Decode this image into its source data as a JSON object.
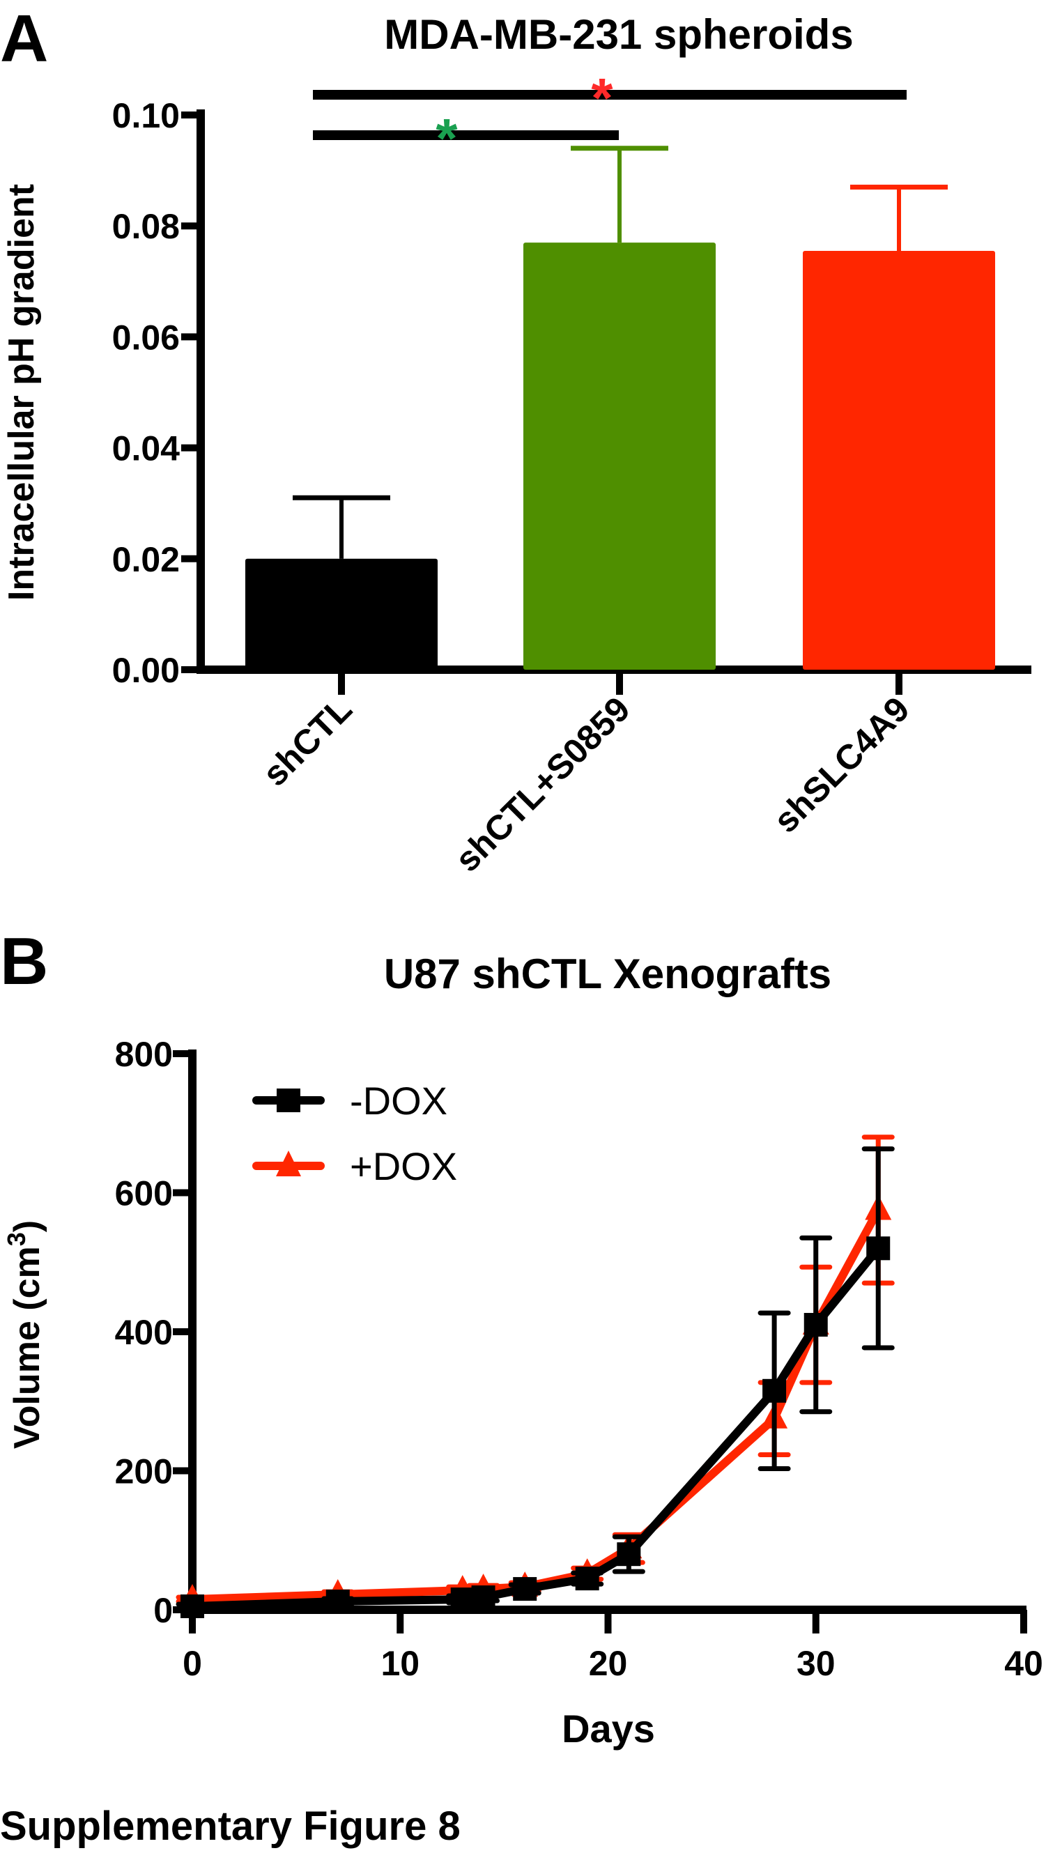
{
  "figure_caption": "Supplementary Figure 8",
  "chart_data": [
    {
      "panel_label": "A",
      "type": "bar",
      "title": "MDA-MB-231 spheroids",
      "xlabel": "",
      "ylabel": "Intracellular pH gradient",
      "ylim": [
        0,
        0.1
      ],
      "yticks": [
        "0.00",
        "0.02",
        "0.04",
        "0.06",
        "0.08",
        "0.10"
      ],
      "categories": [
        "shCTL",
        "shCTL+S0859",
        "shSLC4A9"
      ],
      "values": [
        0.02,
        0.077,
        0.0755
      ],
      "error_upper": [
        0.031,
        0.094,
        0.087
      ],
      "colors": [
        "#000000",
        "#4f8f00",
        "#ff2600"
      ],
      "significance": [
        {
          "from": "shCTL",
          "to": "shSLC4A9",
          "mark": "*",
          "color": "#ff2a2a"
        },
        {
          "from": "shCTL",
          "to": "shCTL+S0859",
          "mark": "*",
          "color": "#1aa050"
        }
      ],
      "grid": false
    },
    {
      "panel_label": "B",
      "type": "line",
      "title": "U87 shCTL Xenografts",
      "xlabel": "Days",
      "ylabel": "Volume (cm",
      "ylabel_sup": "3",
      "ylabel_end": ")",
      "xlim": [
        0,
        40
      ],
      "ylim": [
        0,
        800
      ],
      "xticks": [
        "0",
        "10",
        "20",
        "30",
        "40"
      ],
      "yticks": [
        "0",
        "200",
        "400",
        "600",
        "800"
      ],
      "legend_position": "top-left",
      "grid": false,
      "series": [
        {
          "name": "-DOX",
          "color": "#000000",
          "marker": "square",
          "x": [
            0,
            7,
            13,
            14,
            16,
            19,
            21,
            28,
            30,
            33
          ],
          "y": [
            5,
            12,
            15,
            18,
            30,
            45,
            80,
            315,
            410,
            520
          ],
          "err": [
            3,
            4,
            5,
            5,
            6,
            8,
            25,
            112,
            125,
            143
          ]
        },
        {
          "name": "+DOX",
          "color": "#ff2600",
          "marker": "triangle",
          "x": [
            0,
            7,
            13,
            14,
            16,
            19,
            21,
            28,
            30,
            33
          ],
          "y": [
            15,
            22,
            28,
            30,
            33,
            52,
            88,
            275,
            410,
            575
          ],
          "err": [
            3,
            4,
            5,
            5,
            6,
            8,
            20,
            52,
            83,
            105
          ]
        }
      ]
    }
  ]
}
